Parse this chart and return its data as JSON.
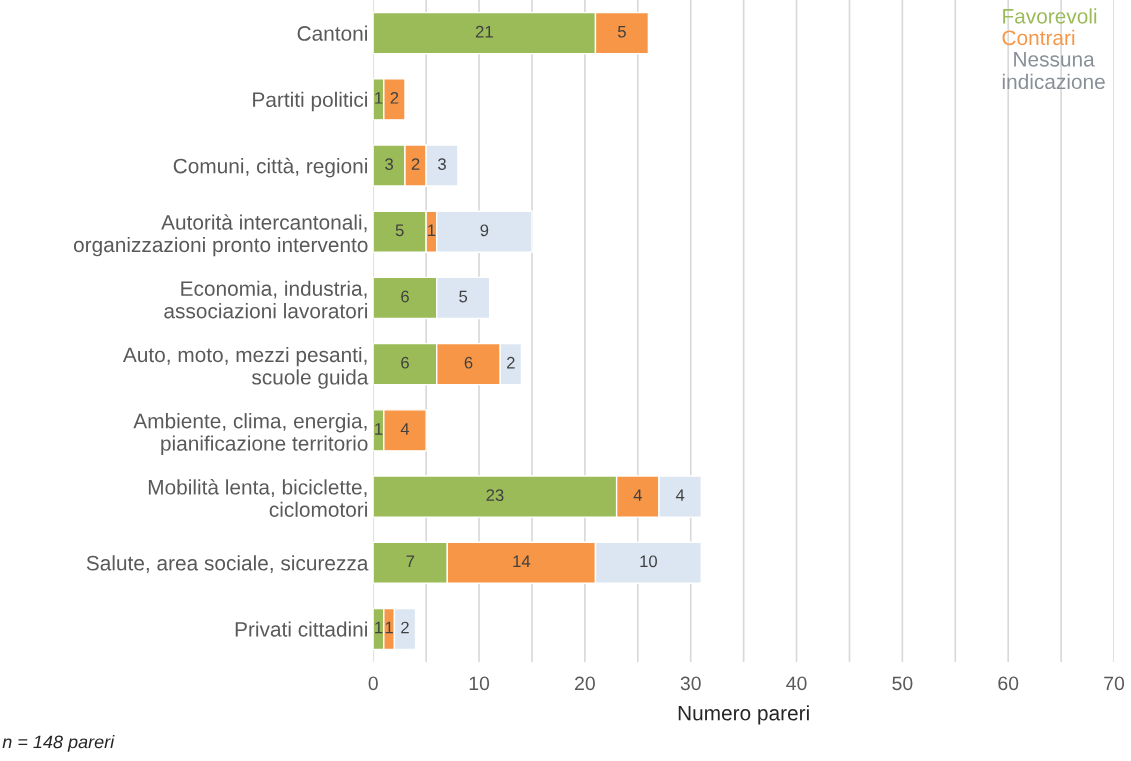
{
  "chart_data": {
    "type": "bar",
    "orientation": "horizontal",
    "stacked": true,
    "categories": [
      "Cantoni",
      "Partiti politici",
      "Comuni, città, regioni",
      "Autorità intercantonali,\norganizzazioni pronto intervento",
      "Economia, industria,\nassociazioni lavoratori",
      "Auto, moto, mezzi pesanti,\nscuole guida",
      "Ambiente, clima, energia,\npianificazione territorio",
      "Mobilità lenta, biciclette,\nciclomotori",
      "Salute, area sociale, sicurezza",
      "Privati cittadini"
    ],
    "series": [
      {
        "name": "Favorevoli",
        "color": "#9bbb59",
        "values": [
          21,
          1,
          3,
          5,
          6,
          6,
          1,
          23,
          7,
          1
        ]
      },
      {
        "name": "Contrari",
        "color": "#f79646",
        "values": [
          5,
          2,
          2,
          1,
          null,
          6,
          4,
          4,
          14,
          1
        ]
      },
      {
        "name": "Nessuna\nindicazione",
        "color": "#dce6f2",
        "values": [
          null,
          null,
          3,
          9,
          5,
          2,
          null,
          4,
          10,
          2
        ]
      }
    ],
    "xlabel": "Numero pareri",
    "xlim": [
      0,
      70
    ],
    "xticks": [
      0,
      {
        "value": 5,
        "label": null
      },
      10,
      {
        "value": 15,
        "label": null
      },
      20,
      {
        "value": 25,
        "label": null
      },
      30,
      {
        "value": 35,
        "label": null
      },
      40,
      {
        "value": 45,
        "label": null
      },
      50,
      {
        "value": 55,
        "label": null
      },
      60,
      {
        "value": 65,
        "label": null
      },
      70
    ],
    "grid": "x",
    "legend": "top right",
    "data_labels": true,
    "annotations": [
      "n = 148 pareri"
    ]
  }
}
